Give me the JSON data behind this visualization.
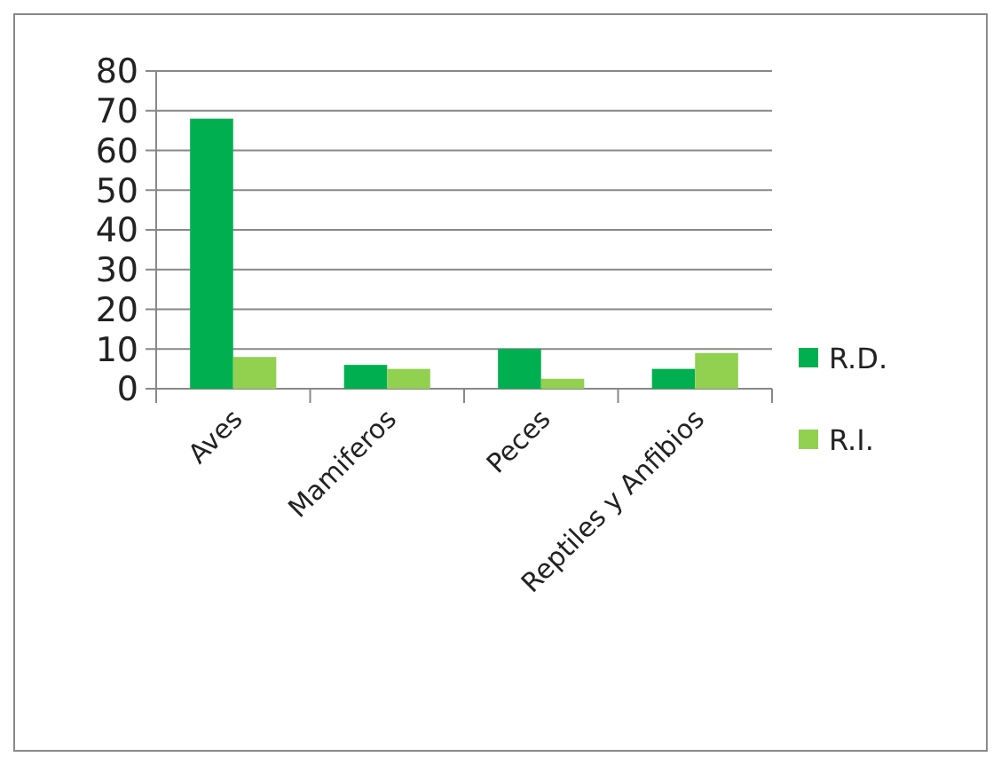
{
  "chart_data": {
    "type": "bar",
    "categories": [
      "Aves",
      "Mamiferos",
      "Peces",
      "Reptiles y Anfibios"
    ],
    "series": [
      {
        "name": "R.D.",
        "color": "#00b050",
        "values": [
          68,
          6,
          10,
          5
        ]
      },
      {
        "name": "R.I.",
        "color": "#92d050",
        "values": [
          8,
          5,
          2.5,
          9
        ]
      }
    ],
    "ylim": [
      0,
      80
    ],
    "yticks": [
      0,
      10,
      20,
      30,
      40,
      50,
      60,
      70,
      80
    ],
    "grid": "y",
    "legend": "right"
  }
}
